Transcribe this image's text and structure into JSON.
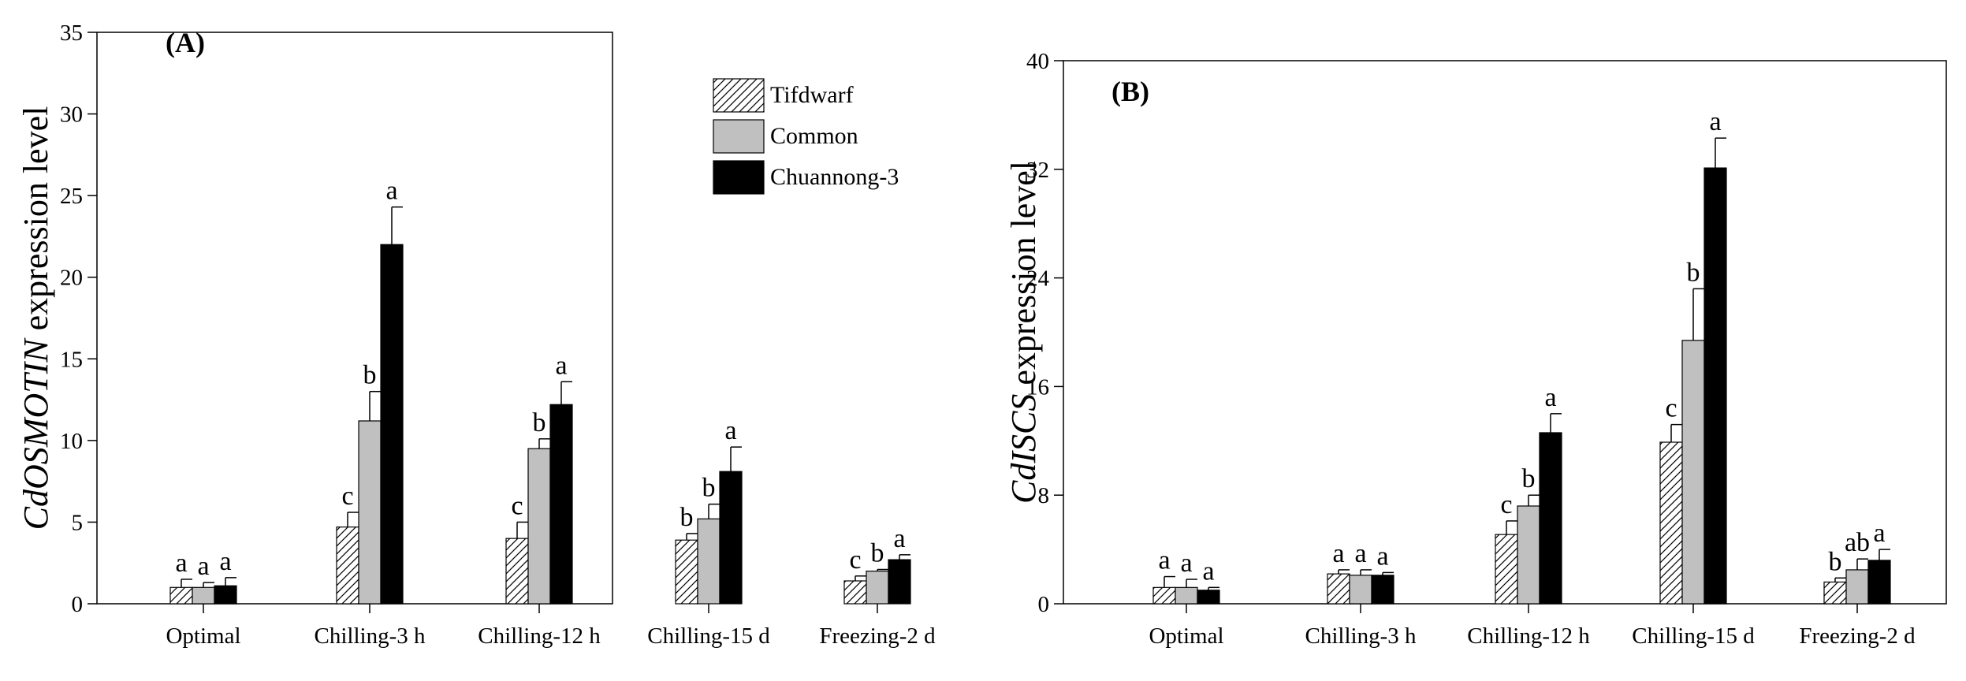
{
  "chart_data": [
    {
      "type": "bar",
      "panel_label": "(A)",
      "ylabel_italic": "CdOSMOTIN",
      "ylabel_rest": " expression level",
      "ylim": [
        0,
        35
      ],
      "yticks": [
        0,
        5,
        10,
        15,
        20,
        25,
        30,
        35
      ],
      "categories": [
        "Optimal",
        "Chilling-3 h",
        "Chilling-12 h",
        "Chilling-15 d",
        "Freezing-2 d"
      ],
      "series": [
        {
          "name": "Tifdwarf",
          "values": [
            1.0,
            4.7,
            4.0,
            3.9,
            1.4
          ],
          "errors": [
            0.5,
            0.9,
            1.0,
            0.4,
            0.3
          ],
          "letters": [
            "a",
            "c",
            "c",
            "b",
            "c"
          ],
          "fill": "hatch"
        },
        {
          "name": "Common",
          "values": [
            1.0,
            11.2,
            9.5,
            5.2,
            2.0
          ],
          "errors": [
            0.3,
            1.8,
            0.6,
            0.9,
            0.1
          ],
          "letters": [
            "a",
            "b",
            "b",
            "b",
            "b"
          ],
          "fill": "#c0c0c0"
        },
        {
          "name": "Chuannong-3",
          "values": [
            1.1,
            22.0,
            12.2,
            8.1,
            2.7
          ],
          "errors": [
            0.5,
            2.3,
            1.4,
            1.5,
            0.3
          ],
          "letters": [
            "a",
            "a",
            "a",
            "a",
            "a"
          ],
          "fill": "#000000"
        }
      ],
      "legend": "top-right",
      "grid": false
    },
    {
      "type": "bar",
      "panel_label": "(B)",
      "ylabel_italic": "CdISCS",
      "ylabel_rest": " expression level",
      "ylim": [
        0,
        40
      ],
      "yticks": [
        0,
        8,
        16,
        24,
        32,
        40
      ],
      "categories": [
        "Optimal",
        "Chilling-3 h",
        "Chilling-12 h",
        "Chilling-15 d",
        "Freezing-2 d"
      ],
      "series": [
        {
          "name": "Tifdwarf",
          "values": [
            1.2,
            2.2,
            5.1,
            11.9,
            1.6
          ],
          "errors": [
            0.8,
            0.3,
            1.0,
            1.3,
            0.3
          ],
          "letters": [
            "a",
            "a",
            "c",
            "c",
            "b"
          ],
          "fill": "hatch"
        },
        {
          "name": "Common",
          "values": [
            1.2,
            2.1,
            7.2,
            19.4,
            2.5
          ],
          "errors": [
            0.6,
            0.4,
            0.8,
            3.8,
            0.8
          ],
          "letters": [
            "a",
            "a",
            "b",
            "b",
            "ab"
          ],
          "fill": "#c0c0c0"
        },
        {
          "name": "Chuannong-3",
          "values": [
            1.0,
            2.1,
            12.6,
            32.1,
            3.2
          ],
          "errors": [
            0.2,
            0.2,
            1.4,
            2.2,
            0.8
          ],
          "letters": [
            "a",
            "a",
            "a",
            "a",
            "a"
          ],
          "fill": "#000000"
        }
      ],
      "grid": false
    }
  ]
}
